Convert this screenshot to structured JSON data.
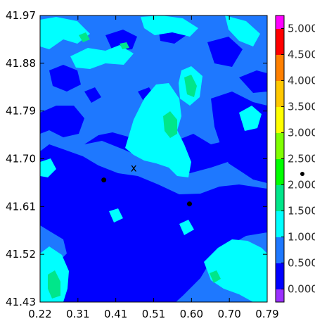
{
  "chart_data": {
    "type": "heatmap",
    "title": "",
    "xlabel": "",
    "ylabel": "",
    "x_ticks": [
      "0.22",
      "0.31",
      "0.41",
      "0.51",
      "0.60",
      "0.70",
      "0.79"
    ],
    "y_ticks": [
      "41.97",
      "41.88",
      "41.79",
      "41.70",
      "41.61",
      "41.52",
      "41.43"
    ],
    "xlim": [
      0.22,
      0.79
    ],
    "ylim": [
      41.43,
      41.97
    ],
    "colorbar": {
      "labels": [
        "0.000",
        "0.500",
        "1.000",
        "1.500",
        "2.000",
        "2.500",
        "3.000",
        "3.500",
        "4.000",
        "4.500",
        "5.000"
      ],
      "levels": [
        -0.25,
        0.0,
        0.25,
        0.5,
        0.75,
        1.0,
        1.25,
        1.5,
        1.75,
        2.0,
        2.25,
        2.5,
        2.75,
        3.0,
        3.25,
        3.5,
        3.75,
        4.0,
        4.25,
        4.5,
        4.75,
        5.0,
        5.25
      ],
      "colors": [
        "#9b30ff",
        "#0000ff",
        "#0000ff",
        "#1e78ff",
        "#1e78ff",
        "#00ffff",
        "#00ffff",
        "#00e68a",
        "#00e68a",
        "#00ff00",
        "#00ff00",
        "#80ff00",
        "#80ff00",
        "#ffff00",
        "#ffff00",
        "#ffc800",
        "#ffc800",
        "#ff8000",
        "#ff8000",
        "#ff0000",
        "#ff0000",
        "#ff00ff"
      ]
    },
    "markers": [
      {
        "type": "dot",
        "x": 0.38,
        "y": 41.66
      },
      {
        "type": "dot",
        "x": 0.595,
        "y": 41.615
      },
      {
        "type": "x",
        "label": "x",
        "x": 0.455,
        "y": 41.683
      }
    ],
    "field_description": "Mostly 0.5-1.0 (medium blue) with large 0.0-0.5 (dark blue) regions in lower-left and center-bottom, 1.0-1.5 (cyan) patches near top, center ridge, bottom-left and bottom-right, and small 1.5-2.0 (green) spots."
  }
}
